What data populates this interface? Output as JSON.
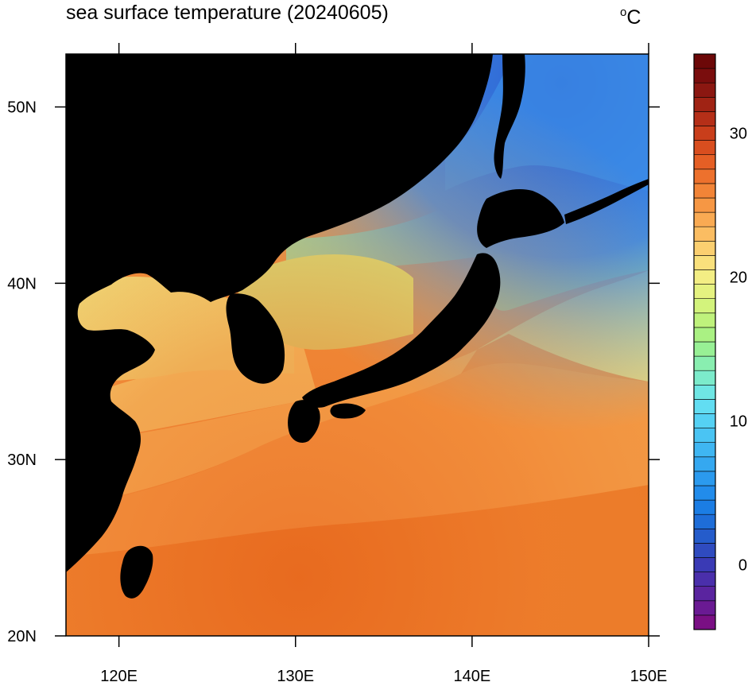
{
  "title": "sea surface temperature (20240605)",
  "unit": {
    "degree": "o",
    "letter": "C"
  },
  "map": {
    "region": "East Asia / Japan sea area",
    "date": "20240605",
    "lon_range": [
      117,
      150
    ],
    "lat_range": [
      20,
      53
    ],
    "land_color": "#000000",
    "x_ticks": [
      {
        "value": 120,
        "label": "120E"
      },
      {
        "value": 130,
        "label": "130E"
      },
      {
        "value": 140,
        "label": "140E"
      },
      {
        "value": 150,
        "label": "150E"
      }
    ],
    "y_ticks": [
      {
        "value": 20,
        "label": "20N"
      },
      {
        "value": 30,
        "label": "30N"
      },
      {
        "value": 40,
        "label": "40N"
      },
      {
        "value": 50,
        "label": "50N"
      }
    ]
  },
  "colorbar": {
    "min": -4,
    "max": 36,
    "step": 1,
    "tick_labels": [
      {
        "value": 0,
        "label": "0"
      },
      {
        "value": 10,
        "label": "10"
      },
      {
        "value": 20,
        "label": "20"
      },
      {
        "value": 30,
        "label": "30"
      }
    ],
    "colors": [
      "#7a0f84",
      "#6a1a93",
      "#5a249f",
      "#4a2fab",
      "#3a3ab5",
      "#2f4bbf",
      "#255ccb",
      "#1e6dd8",
      "#1b7de4",
      "#228ceb",
      "#2b9aee",
      "#35a8f0",
      "#3fb6f2",
      "#4ac4f3",
      "#55d1f4",
      "#62ddf2",
      "#6fe6e4",
      "#7cebcb",
      "#89eeb0",
      "#98f095",
      "#aaf183",
      "#bff27c",
      "#d3f37c",
      "#e5f280",
      "#f3ee84",
      "#f9e07c",
      "#fbcf70",
      "#fbbd62",
      "#f9aa53",
      "#f69744",
      "#f28437",
      "#ed712d",
      "#e55f25",
      "#d94e1f",
      "#c93e1b",
      "#b52f18",
      "#a02314",
      "#8b1711",
      "#7a0d0d",
      "#6c0808"
    ]
  }
}
